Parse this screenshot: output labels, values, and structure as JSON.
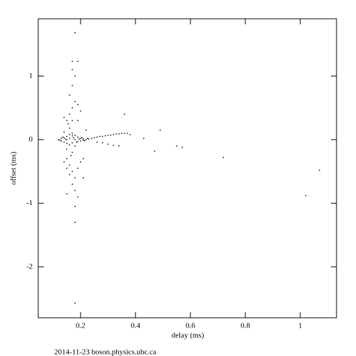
{
  "chart_data": {
    "type": "scatter",
    "x_label": "delay (ms)",
    "y_label": "offset (ms)",
    "xlim": [
      0.046,
      1.132
    ],
    "ylim": [
      -2.8,
      1.9
    ],
    "xticks": [
      0.2,
      0.4,
      0.6,
      0.8,
      1
    ],
    "yticks": [
      -2,
      -1,
      0,
      1
    ],
    "series": [
      {
        "color": "#000000",
        "x": [
          0.12,
          0.13,
          0.13,
          0.14,
          0.14,
          0.15,
          0.15,
          0.15,
          0.16,
          0.16,
          0.16,
          0.17,
          0.17,
          0.17,
          0.18,
          0.18,
          0.18,
          0.19,
          0.19,
          0.2,
          0.2,
          0.21,
          0.21,
          0.22,
          0.14,
          0.15,
          0.16,
          0.17,
          0.155,
          0.165,
          0.145,
          0.175,
          0.185,
          0.125,
          0.135,
          0.195,
          0.205,
          0.215,
          0.225,
          0.23,
          0.15,
          0.16,
          0.17,
          0.18,
          0.16,
          0.17,
          0.18,
          0.17,
          0.19,
          0.2,
          0.15,
          0.16,
          0.17,
          0.18,
          0.17,
          0.18,
          0.19,
          0.18,
          0.15,
          0.2,
          0.14,
          0.14,
          0.19,
          0.19,
          0.16,
          0.17,
          0.21,
          0.22,
          0.21,
          0.15,
          0.24,
          0.25,
          0.26,
          0.27,
          0.28,
          0.29,
          0.3,
          0.31,
          0.32,
          0.33,
          0.34,
          0.35,
          0.36,
          0.37,
          0.26,
          0.28,
          0.3,
          0.32,
          0.34,
          0.38,
          0.18,
          0.17,
          0.19,
          0.18,
          0.18,
          0.36,
          0.49,
          0.72,
          1.02,
          1.07,
          0.55,
          0.57,
          0.47,
          0.43
        ],
        "y": [
          0.0,
          -0.02,
          0.02,
          0.03,
          -0.04,
          0.05,
          -0.06,
          0.0,
          0.08,
          -0.08,
          0.02,
          0.06,
          -0.05,
          0.1,
          0.0,
          -0.1,
          0.07,
          0.04,
          -0.03,
          0.02,
          -0.02,
          0.01,
          -0.01,
          0.0,
          0.12,
          -0.15,
          0.18,
          -0.2,
          0.25,
          -0.25,
          0.01,
          0.03,
          -0.04,
          -0.01,
          0.04,
          0.01,
          0.03,
          -0.02,
          0.02,
          0.01,
          0.3,
          0.4,
          0.5,
          0.6,
          0.7,
          0.85,
          1.0,
          1.1,
          0.55,
          0.45,
          -0.3,
          -0.4,
          -0.5,
          -0.6,
          -0.7,
          -0.8,
          -0.9,
          -1.05,
          -0.45,
          -0.35,
          0.35,
          -0.35,
          0.3,
          -0.45,
          -0.55,
          0.3,
          -0.3,
          0.15,
          -0.6,
          -0.85,
          0.02,
          0.03,
          0.04,
          0.05,
          0.05,
          0.06,
          0.07,
          0.07,
          0.08,
          0.09,
          0.09,
          0.1,
          0.1,
          0.1,
          -0.04,
          -0.05,
          -0.07,
          -0.09,
          -0.1,
          0.08,
          1.68,
          1.23,
          1.23,
          -2.57,
          -1.3,
          0.4,
          0.15,
          -0.28,
          -0.88,
          -0.48,
          -0.1,
          -0.12,
          -0.18,
          0.02
        ]
      }
    ]
  },
  "footer": "2014-11-23  boson.physics.ubc.ca"
}
